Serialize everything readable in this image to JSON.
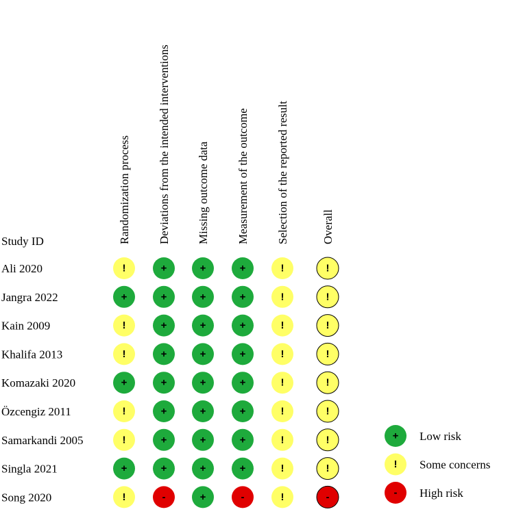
{
  "header": {
    "study_label": "Study ID",
    "domains": [
      "Randomization process",
      "Deviations from the intended interventions",
      "Missing outcome data",
      "Measurement of the outcome",
      "Selection of the reported result",
      "Overall"
    ]
  },
  "studies": [
    {
      "name": "Ali 2020",
      "judgments": [
        "!",
        "+",
        "+",
        "+",
        "!",
        "!"
      ]
    },
    {
      "name": "Jangra 2022",
      "judgments": [
        "+",
        "+",
        "+",
        "+",
        "!",
        "!"
      ]
    },
    {
      "name": "Kain 2009",
      "judgments": [
        "!",
        "+",
        "+",
        "+",
        "!",
        "!"
      ]
    },
    {
      "name": "Khalifa 2013",
      "judgments": [
        "!",
        "+",
        "+",
        "+",
        "!",
        "!"
      ]
    },
    {
      "name": "Komazaki 2020",
      "judgments": [
        "+",
        "+",
        "+",
        "+",
        "!",
        "!"
      ]
    },
    {
      "name": "Özcengiz 2011",
      "judgments": [
        "!",
        "+",
        "+",
        "+",
        "!",
        "!"
      ]
    },
    {
      "name": "Samarkandi 2005",
      "judgments": [
        "!",
        "+",
        "+",
        "+",
        "!",
        "!"
      ]
    },
    {
      "name": "Singla 2021",
      "judgments": [
        "+",
        "+",
        "+",
        "+",
        "!",
        "!"
      ]
    },
    {
      "name": "Song 2020",
      "judgments": [
        "!",
        "-",
        "+",
        "-",
        "!",
        "-"
      ]
    }
  ],
  "legend": [
    {
      "symbol": "+",
      "label": "Low risk",
      "color": "#1eaa3c"
    },
    {
      "symbol": "!",
      "label": "Some concerns",
      "color": "#ffff66"
    },
    {
      "symbol": "-",
      "label": "High risk",
      "color": "#e00000"
    }
  ]
}
